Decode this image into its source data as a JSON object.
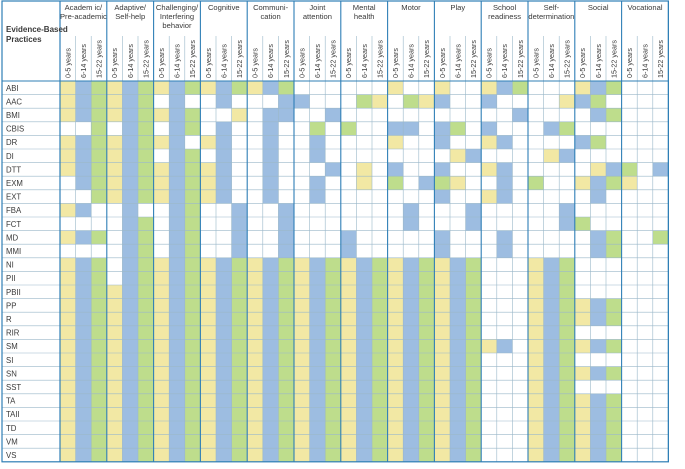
{
  "corner_label": [
    "Evidence-Based",
    "Practices"
  ],
  "groups": [
    {
      "label": [
        "Academ ic/",
        "Pre-academic"
      ]
    },
    {
      "label": [
        "Adaptive/",
        "Self-help"
      ]
    },
    {
      "label": [
        "Challenging/",
        "Interfering",
        "behavior"
      ]
    },
    {
      "label": [
        "Cognitive"
      ]
    },
    {
      "label": [
        "Communi-",
        "cation"
      ]
    },
    {
      "label": [
        "Joint",
        "attention"
      ]
    },
    {
      "label": [
        "Mental",
        "health"
      ]
    },
    {
      "label": [
        "Motor"
      ]
    },
    {
      "label": [
        "Play"
      ]
    },
    {
      "label": [
        "School",
        "readiness"
      ]
    },
    {
      "label": [
        "Self-",
        "determination"
      ]
    },
    {
      "label": [
        "Social"
      ]
    },
    {
      "label": [
        "Vocational"
      ]
    }
  ],
  "age_labels": [
    "0-5 years",
    "6-14 years",
    "15-22 years"
  ],
  "legend_colors": {
    "Y": "#f2e8a4",
    "B": "#9dbde1",
    "G": "#bedd8c",
    "empty": "#ffffff"
  },
  "rows": [
    {
      "name": "ABI",
      "cells": "YBGYBGYBGYBGYBG......Y..Y..YBG...YBG..."
    },
    {
      "name": "AAC",
      "cells": "YBGYBG.B..B...BB...GY.GYB..B....YBG..."
    },
    {
      "name": "BMI",
      "cells": "YBGYBGYBG..Y.BB..B...........B....BG..."
    },
    {
      "name": "CBIS",
      "cells": "..G.BG.BG.B..B..G.G..BB.BG.B...BG.."
    },
    {
      "name": "DR",
      "cells": "YBGYBGYB.YB..B..B....Y..B..YB....BG..."
    },
    {
      "name": "DI",
      "cells": "YBGYBG.BG.B..B..B........YB....YB...."
    },
    {
      "name": "DTT",
      "cells": "YBGYBGYBGYB..B...B.Y.B..B..YB.....YBG.B."
    },
    {
      "name": "EXM",
      "cells": ".BGYBGYBGYB..B..B..Y.G.BGY..B.G..YBGY.."
    },
    {
      "name": "EXT",
      "cells": "..GYBGYBGYB..B..B.......B..YB.....B...."
    },
    {
      "name": "FBA",
      "cells": "YB..B..BG..B..B.......B...B.....B...."
    },
    {
      "name": "FCT",
      "cells": "....BG.BG..B..B.......B...B.....BG..."
    },
    {
      "name": "MD",
      "cells": "YBG.BG.BG..B..B...B.....B...B.....BG..G"
    },
    {
      "name": "MMI",
      "cells": "....BG.BG..B..B...B.....B...B.....BG..."
    },
    {
      "name": "NI",
      "cells": "YBG.BGYBGYBGYBGYBGYBGYBGYBG...YBG..."
    },
    {
      "name": "PII",
      "cells": "YBG.BGYBGYBGYBGYBGYBGYBGYBG...YBG..."
    },
    {
      "name": "PBII",
      "cells": "YBGYBGYBGYBGYBGYBGYBGYBGYBG...YBG..."
    },
    {
      "name": "PP",
      "cells": "YBGYBGYBGYBGYBGYBGYBGYBGYBG...YBGYBG"
    },
    {
      "name": "R",
      "cells": "YBGYBGYBGYBGYBGYBGYBGYBGYBG...YBGYBG"
    },
    {
      "name": "RIR",
      "cells": "YBGYBGYBGYBGYBGYBGYBGYBGYBG...YBG..."
    },
    {
      "name": "SM",
      "cells": "YBGYBGYBGYBGYBGYBGYBGYBGYBGYB.YBGYBG"
    },
    {
      "name": "SI",
      "cells": "YBGYBGYBGYBGYBGYBGYBGYBGYBG...YBG..."
    },
    {
      "name": "SN",
      "cells": "YBGYBGYBGYBGYBGYBGYBGYBGYBG...YBGYBG"
    },
    {
      "name": "SST",
      "cells": "YBGYBGYBGYBGYBGYBGYBGYBGYBG...YBG..."
    },
    {
      "name": "TA",
      "cells": "YBGYBGYBGYBGYBGYBGYBGYBGYBG...YBGYBG"
    },
    {
      "name": "TAII",
      "cells": "YBGYBGYBGYBGYBGYBGYBGYBGYBG...YBGYBG"
    },
    {
      "name": "TD",
      "cells": "YBGYBGYBGYBGYBGYBGYBGYBGYBG...YBGYBG"
    },
    {
      "name": "VM",
      "cells": "YBGYBGYBGYBGYBGYBGYBGYBGYBG...YBGYBG"
    },
    {
      "name": "VS",
      "cells": "YBGYBGYBGYBGYBGYBGYBGYBGYBG...YBGYBG"
    }
  ]
}
